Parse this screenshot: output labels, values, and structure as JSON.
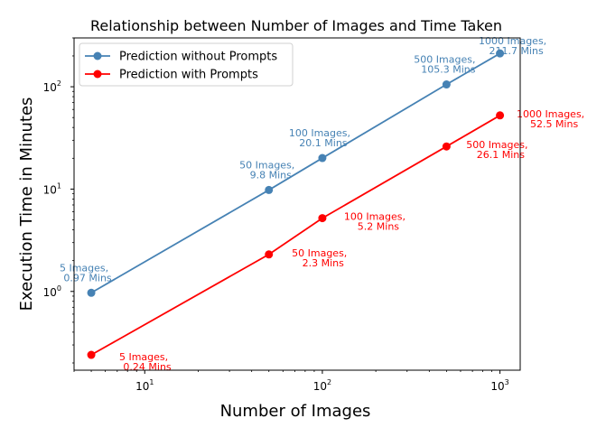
{
  "chart_data": {
    "type": "line",
    "title": "Relationship between Number of Images and Time Taken",
    "xlabel": "Number of Images",
    "ylabel": "Execution Time in Minutes",
    "xscale": "log",
    "yscale": "log",
    "xlim": [
      4,
      1300
    ],
    "ylim": [
      0.17,
      300
    ],
    "grid": false,
    "legend_position": "top-left",
    "x_ticks": [
      {
        "base": "10",
        "exp": "1",
        "value": 10
      },
      {
        "base": "10",
        "exp": "2",
        "value": 100
      },
      {
        "base": "10",
        "exp": "3",
        "value": 1000
      }
    ],
    "y_ticks": [
      {
        "base": "10",
        "exp": "0",
        "value": 1
      },
      {
        "base": "10",
        "exp": "1",
        "value": 10
      },
      {
        "base": "10",
        "exp": "2",
        "value": 100
      }
    ],
    "x": [
      5,
      50,
      100,
      500,
      1000
    ],
    "series": [
      {
        "name": "Prediction without Prompts",
        "color": "#4682b4",
        "values": [
          0.97,
          9.8,
          20.1,
          105.3,
          211.7
        ],
        "labels": [
          [
            "5 Images,",
            "0.97 Mins"
          ],
          [
            "50 Images,",
            "9.8 Mins"
          ],
          [
            "100 Images,",
            "20.1 Mins"
          ],
          [
            "500 Images,",
            "105.3 Mins"
          ],
          [
            "1000 Images,",
            "211.7 Mins"
          ]
        ]
      },
      {
        "name": "Prediction with Prompts",
        "color": "#ff0000",
        "values": [
          0.24,
          2.3,
          5.2,
          26.1,
          52.5
        ],
        "labels": [
          [
            "5 Images,",
            "0.24 Mins"
          ],
          [
            "50 Images,",
            "2.3 Mins"
          ],
          [
            "100 Images,",
            "5.2 Mins"
          ],
          [
            "500 Images,",
            "26.1 Mins"
          ],
          [
            "1000 Images,",
            "52.5 Mins"
          ]
        ]
      }
    ]
  }
}
